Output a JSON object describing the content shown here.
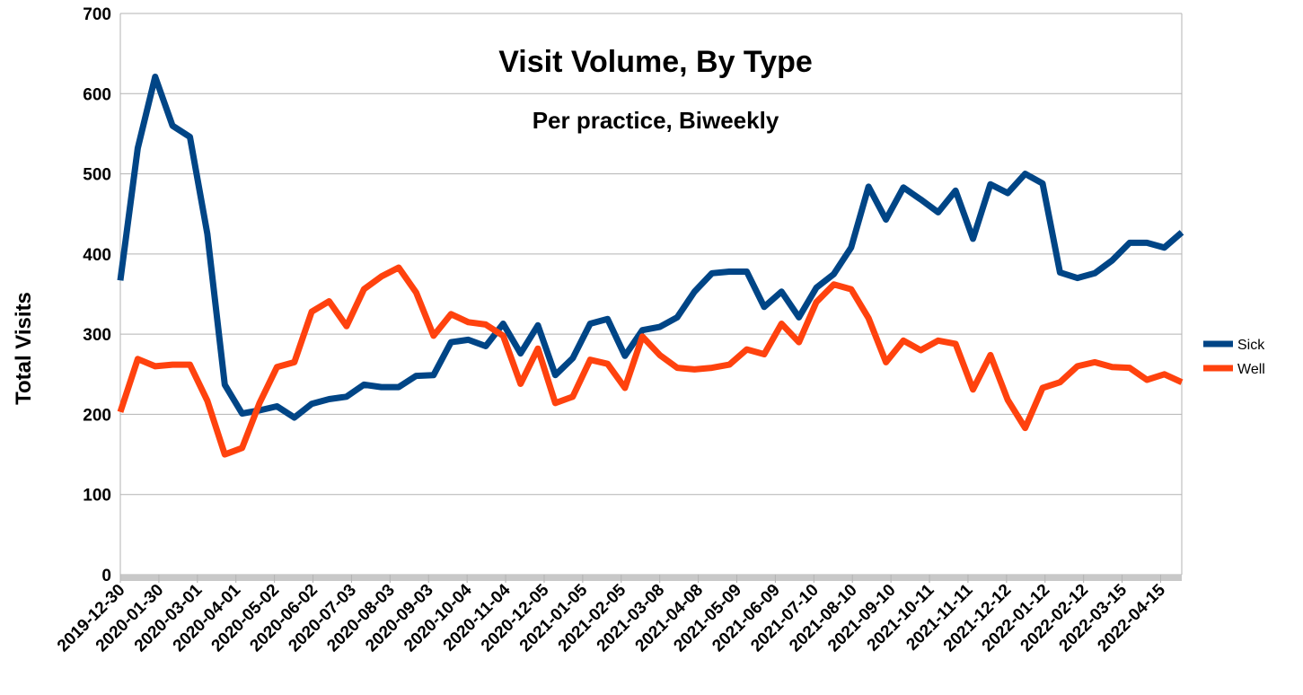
{
  "chart_data": {
    "type": "line",
    "title": "Visit Volume, By Type",
    "subtitle": "Per practice, Biweekly",
    "y_label": "Total Visits",
    "x": [
      "2019-12-30",
      "2020-01-13",
      "2020-01-27",
      "2020-02-10",
      "2020-02-24",
      "2020-03-09",
      "2020-03-23",
      "2020-04-06",
      "2020-04-20",
      "2020-05-04",
      "2020-05-18",
      "2020-06-01",
      "2020-06-15",
      "2020-06-29",
      "2020-07-13",
      "2020-07-27",
      "2020-08-10",
      "2020-08-24",
      "2020-09-07",
      "2020-09-21",
      "2020-10-05",
      "2020-10-19",
      "2020-11-02",
      "2020-11-16",
      "2020-11-30",
      "2020-12-14",
      "2020-12-28",
      "2021-01-11",
      "2021-01-25",
      "2021-02-08",
      "2021-02-22",
      "2021-03-08",
      "2021-03-22",
      "2021-04-05",
      "2021-04-19",
      "2021-05-03",
      "2021-05-17",
      "2021-05-31",
      "2021-06-14",
      "2021-06-28",
      "2021-07-12",
      "2021-07-26",
      "2021-08-09",
      "2021-08-23",
      "2021-09-06",
      "2021-09-20",
      "2021-10-04",
      "2021-10-18",
      "2021-11-01",
      "2021-11-15",
      "2021-11-29",
      "2021-12-13",
      "2021-12-27",
      "2022-01-10",
      "2022-01-24",
      "2022-02-07",
      "2022-02-21",
      "2022-03-07",
      "2022-03-21",
      "2022-04-04",
      "2022-04-18",
      "2022-05-02"
    ],
    "series": [
      {
        "name": "Sick",
        "color": "#004586",
        "values": [
          367,
          532,
          621,
          560,
          546,
          425,
          237,
          201,
          205,
          210,
          196,
          213,
          219,
          222,
          237,
          234,
          234,
          248,
          249,
          290,
          293,
          285,
          313,
          276,
          311,
          249,
          270,
          313,
          319,
          273,
          305,
          309,
          321,
          353,
          376,
          378,
          378,
          334,
          353,
          321,
          358,
          375,
          408,
          484,
          443,
          483,
          468,
          452,
          479,
          419,
          487,
          476,
          500,
          488,
          377,
          370,
          376,
          392,
          414,
          414,
          408,
          427
        ]
      },
      {
        "name": "Well",
        "color": "#ff420e",
        "values": [
          203,
          269,
          260,
          262,
          262,
          217,
          150,
          158,
          214,
          259,
          265,
          328,
          341,
          310,
          356,
          372,
          383,
          352,
          298,
          325,
          315,
          312,
          298,
          238,
          282,
          214,
          222,
          268,
          263,
          233,
          297,
          274,
          258,
          256,
          258,
          262,
          281,
          275,
          313,
          290,
          340,
          362,
          356,
          320,
          265,
          292,
          280,
          292,
          288,
          231,
          274,
          218,
          183,
          233,
          240,
          260,
          265,
          259,
          258,
          243,
          250,
          240
        ]
      }
    ],
    "xlim": [
      "2019-12-30",
      "2022-05-02"
    ],
    "xticks": [
      "2019-12-30",
      "2020-01-30",
      "2020-03-01",
      "2020-04-01",
      "2020-05-02",
      "2020-06-02",
      "2020-07-03",
      "2020-08-03",
      "2020-09-03",
      "2020-10-04",
      "2020-11-04",
      "2020-12-05",
      "2021-01-05",
      "2021-02-05",
      "2021-03-08",
      "2021-04-08",
      "2021-05-09",
      "2021-06-09",
      "2021-07-10",
      "2021-08-10",
      "2021-09-10",
      "2021-10-11",
      "2021-11-11",
      "2021-12-12",
      "2022-01-12",
      "2022-02-12",
      "2022-03-15",
      "2022-04-15"
    ],
    "ylim": [
      0,
      700
    ],
    "yticks": [
      0,
      100,
      200,
      300,
      400,
      500,
      600,
      700
    ],
    "grid": true,
    "legend": "right"
  }
}
